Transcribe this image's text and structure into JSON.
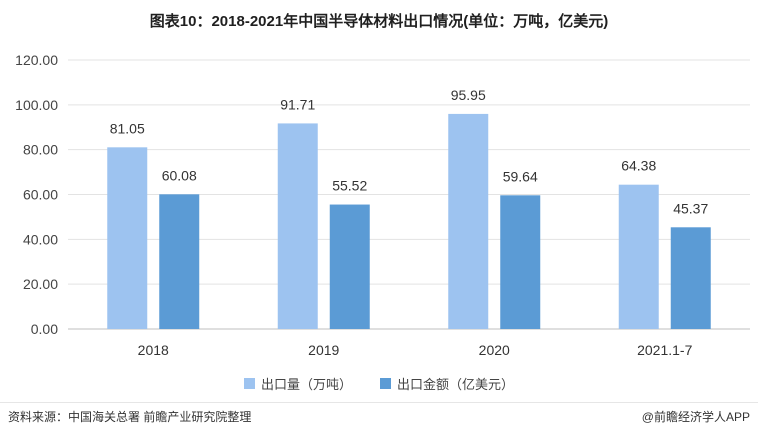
{
  "chart_data": {
    "type": "bar",
    "title": "图表10：2018-2021年中国半导体材料出口情况(单位：万吨，亿美元)",
    "categories": [
      "2018",
      "2019",
      "2020",
      "2021.1-7"
    ],
    "series": [
      {
        "name": "出口量（万吨）",
        "values": [
          81.05,
          91.71,
          95.95,
          64.38
        ],
        "color": "#9dc3f0"
      },
      {
        "name": "出口金额（亿美元）",
        "values": [
          60.08,
          55.52,
          59.64,
          45.37
        ],
        "color": "#5b9bd5"
      }
    ],
    "ylim": [
      0,
      120
    ],
    "yticks": [
      "0.00",
      "20.00",
      "40.00",
      "60.00",
      "80.00",
      "100.00",
      "120.00"
    ],
    "grid": true,
    "legend_position": "bottom"
  },
  "footer": {
    "source": "资料来源：中国海关总署 前瞻产业研究院整理",
    "brand": "@前瞻经济学人APP"
  }
}
